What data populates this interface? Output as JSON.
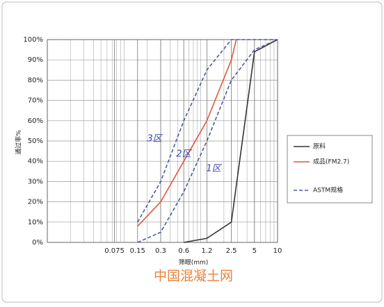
{
  "chart_data": {
    "type": "line",
    "x_label": "筛眼(mm)",
    "y_label": "通过率%",
    "xlim": [
      0.01,
      10
    ],
    "ylim": [
      0,
      100
    ],
    "log_x": true,
    "grid": true,
    "xticks": [
      0.075,
      0.15,
      0.3,
      0.6,
      1.2,
      2.5,
      5,
      10
    ],
    "x_minor_ticks": [
      0.02,
      0.03,
      0.04,
      0.05,
      0.06,
      0.07,
      0.08,
      0.09,
      0.1,
      0.2,
      0.3,
      0.4,
      0.5,
      0.6,
      0.7,
      0.8,
      0.9,
      1,
      2,
      3,
      4,
      5,
      6,
      7,
      8,
      9
    ],
    "yticks": [
      {
        "value": 0,
        "label": "0%"
      },
      {
        "value": 10,
        "label": "10%"
      },
      {
        "value": 20,
        "label": "20%"
      },
      {
        "value": 30,
        "label": "30%"
      },
      {
        "value": 40,
        "label": "40%"
      },
      {
        "value": 50,
        "label": "50%"
      },
      {
        "value": 60,
        "label": "60%"
      },
      {
        "value": 70,
        "label": "70%"
      },
      {
        "value": 80,
        "label": "80%"
      },
      {
        "value": 90,
        "label": "90%"
      },
      {
        "value": 100,
        "label": "100%"
      }
    ],
    "legend": "right",
    "series": [
      {
        "name": "原料",
        "color": "#333333",
        "x": [
          0.6,
          1.2,
          2.5,
          5,
          10
        ],
        "values": [
          0,
          2,
          10,
          94,
          100
        ]
      },
      {
        "name": "成品(FM2.7)",
        "color": "#e0573e",
        "x": [
          0.15,
          0.3,
          0.6,
          1.2,
          2.5,
          2.9
        ],
        "values": [
          8,
          20,
          40,
          60,
          90,
          100
        ]
      },
      {
        "name": "ASTM规格",
        "color": "#4a5a9a",
        "dashed": true,
        "x": [
          0.15,
          0.3,
          0.6,
          1.2,
          2.5,
          5,
          10
        ],
        "upper": [
          10,
          30,
          60,
          85,
          100,
          100,
          100
        ],
        "lower": [
          0,
          5,
          25,
          50,
          80,
          95,
          100
        ]
      }
    ],
    "annotations": [
      "3区",
      "2区",
      "1区"
    ],
    "watermark": "中国混凝土网"
  }
}
